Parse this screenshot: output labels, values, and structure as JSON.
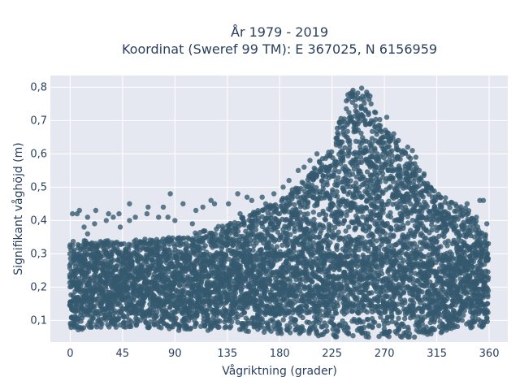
{
  "chart_data": {
    "type": "scatter",
    "title_lines": [
      "År 1979 - 2019",
      "Koordinat (Sweref 99 TM): E 367025, N 6156959"
    ],
    "xlabel": "Vågriktning (grader)",
    "ylabel": "Signifikant våghöjd (m)",
    "xlim": [
      -17,
      376
    ],
    "ylim": [
      0.035,
      0.835
    ],
    "x_ticks": [
      0,
      45,
      90,
      135,
      180,
      225,
      270,
      315,
      360
    ],
    "x_tick_labels": [
      "0",
      "45",
      "90",
      "135",
      "180",
      "225",
      "270",
      "315",
      "360"
    ],
    "y_ticks": [
      0.1,
      0.2,
      0.3,
      0.4,
      0.5,
      0.6,
      0.7,
      0.8
    ],
    "y_tick_labels": [
      "0,1",
      "0,2",
      "0,3",
      "0,4",
      "0,5",
      "0,6",
      "0,7",
      "0,8"
    ],
    "grid": true,
    "legend": "none",
    "marker_color": "#34586e",
    "plot_background": "#e5e8f0",
    "envelope": [
      {
        "x": 0,
        "low": 0.07,
        "high": 0.34
      },
      {
        "x": 45,
        "low": 0.08,
        "high": 0.34
      },
      {
        "x": 90,
        "low": 0.07,
        "high": 0.35
      },
      {
        "x": 135,
        "low": 0.07,
        "high": 0.39
      },
      {
        "x": 180,
        "low": 0.06,
        "high": 0.46
      },
      {
        "x": 200,
        "low": 0.06,
        "high": 0.52
      },
      {
        "x": 215,
        "low": 0.05,
        "high": 0.58
      },
      {
        "x": 225,
        "low": 0.05,
        "high": 0.62
      },
      {
        "x": 235,
        "low": 0.05,
        "high": 0.74
      },
      {
        "x": 240,
        "low": 0.05,
        "high": 0.8
      },
      {
        "x": 255,
        "low": 0.05,
        "high": 0.8
      },
      {
        "x": 260,
        "low": 0.05,
        "high": 0.75
      },
      {
        "x": 270,
        "low": 0.05,
        "high": 0.68
      },
      {
        "x": 285,
        "low": 0.05,
        "high": 0.62
      },
      {
        "x": 300,
        "low": 0.05,
        "high": 0.56
      },
      {
        "x": 315,
        "low": 0.06,
        "high": 0.48
      },
      {
        "x": 340,
        "low": 0.07,
        "high": 0.44
      },
      {
        "x": 360,
        "low": 0.08,
        "high": 0.34
      }
    ],
    "dense_band": {
      "low": 0.12,
      "high": 0.3
    },
    "outliers": [
      {
        "x": 2,
        "y": 0.42
      },
      {
        "x": 6,
        "y": 0.42
      },
      {
        "x": 8,
        "y": 0.43
      },
      {
        "x": 12,
        "y": 0.38
      },
      {
        "x": 15,
        "y": 0.41
      },
      {
        "x": 15,
        "y": 0.36
      },
      {
        "x": 21,
        "y": 0.39
      },
      {
        "x": 22,
        "y": 0.43
      },
      {
        "x": 31,
        "y": 0.4
      },
      {
        "x": 33,
        "y": 0.42
      },
      {
        "x": 37,
        "y": 0.41
      },
      {
        "x": 42,
        "y": 0.42
      },
      {
        "x": 43,
        "y": 0.38
      },
      {
        "x": 51,
        "y": 0.45
      },
      {
        "x": 51,
        "y": 0.4
      },
      {
        "x": 56,
        "y": 0.41
      },
      {
        "x": 66,
        "y": 0.42
      },
      {
        "x": 67,
        "y": 0.44
      },
      {
        "x": 76,
        "y": 0.41
      },
      {
        "x": 80,
        "y": 0.44
      },
      {
        "x": 84,
        "y": 0.41
      },
      {
        "x": 86,
        "y": 0.48
      },
      {
        "x": 90,
        "y": 0.4
      },
      {
        "x": 97,
        "y": 0.45
      },
      {
        "x": 105,
        "y": 0.39
      },
      {
        "x": 108,
        "y": 0.43
      },
      {
        "x": 114,
        "y": 0.44
      },
      {
        "x": 121,
        "y": 0.46
      },
      {
        "x": 124,
        "y": 0.45
      },
      {
        "x": 136,
        "y": 0.45
      },
      {
        "x": 144,
        "y": 0.48
      },
      {
        "x": 146,
        "y": 0.42
      },
      {
        "x": 152,
        "y": 0.47
      },
      {
        "x": 156,
        "y": 0.46
      },
      {
        "x": 165,
        "y": 0.47
      },
      {
        "x": 168,
        "y": 0.45
      },
      {
        "x": 175,
        "y": 0.48
      },
      {
        "x": 183,
        "y": 0.5
      },
      {
        "x": 188,
        "y": 0.52
      },
      {
        "x": 196,
        "y": 0.55
      },
      {
        "x": 201,
        "y": 0.56
      },
      {
        "x": 206,
        "y": 0.58
      },
      {
        "x": 212,
        "y": 0.6
      },
      {
        "x": 272,
        "y": 0.71
      },
      {
        "x": 278,
        "y": 0.66
      },
      {
        "x": 282,
        "y": 0.64
      },
      {
        "x": 290,
        "y": 0.62
      },
      {
        "x": 294,
        "y": 0.61
      },
      {
        "x": 297,
        "y": 0.59
      },
      {
        "x": 300,
        "y": 0.55
      },
      {
        "x": 304,
        "y": 0.54
      },
      {
        "x": 311,
        "y": 0.49
      },
      {
        "x": 316,
        "y": 0.47
      },
      {
        "x": 325,
        "y": 0.45
      },
      {
        "x": 337,
        "y": 0.43
      },
      {
        "x": 341,
        "y": 0.45
      },
      {
        "x": 349,
        "y": 0.41
      },
      {
        "x": 352,
        "y": 0.46
      },
      {
        "x": 355,
        "y": 0.46
      },
      {
        "x": 358,
        "y": 0.39
      },
      {
        "x": 230,
        "y": 0.07
      },
      {
        "x": 250,
        "y": 0.07
      },
      {
        "x": 270,
        "y": 0.06
      },
      {
        "x": 285,
        "y": 0.05
      },
      {
        "x": 310,
        "y": 0.06
      },
      {
        "x": 330,
        "y": 0.08
      }
    ]
  }
}
